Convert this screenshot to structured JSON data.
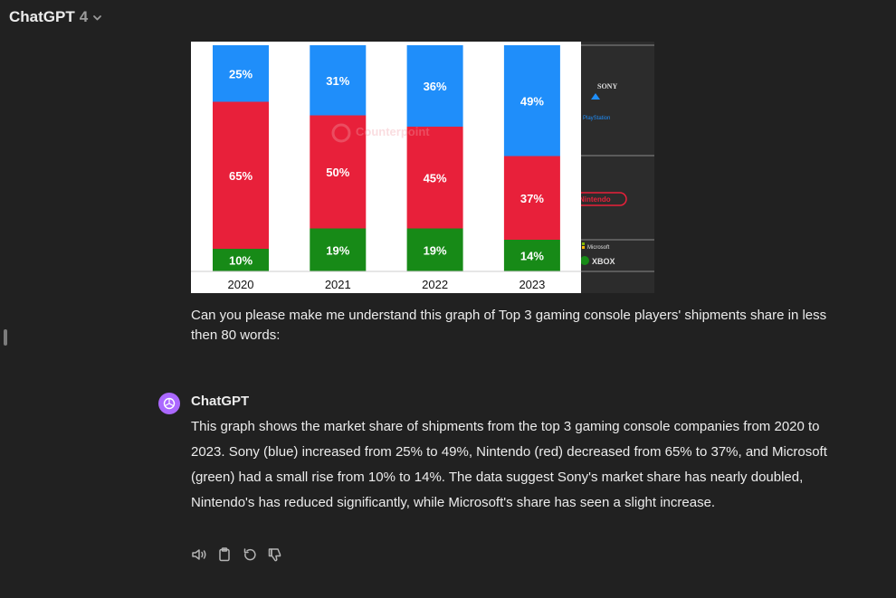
{
  "header": {
    "model_name": "ChatGPT",
    "model_version": "4"
  },
  "icons": {
    "chevron": "chevron-down-icon",
    "avatar": "openai-logo-icon",
    "read_aloud": "speaker-icon",
    "copy": "clipboard-icon",
    "regenerate": "refresh-icon",
    "dislike": "thumbs-down-icon"
  },
  "colors": {
    "sony": "#1f8efa",
    "nintendo": "#e8203a",
    "microsoft": "#178a17",
    "avatar": "#ab68ff"
  },
  "chart_data": {
    "type": "bar",
    "stacked": true,
    "categories": [
      "2020",
      "2021",
      "2022",
      "2023"
    ],
    "series": [
      {
        "name": "Microsoft",
        "values": [
          10,
          19,
          19,
          14
        ]
      },
      {
        "name": "Nintendo",
        "values": [
          65,
          50,
          45,
          37
        ]
      },
      {
        "name": "Sony",
        "values": [
          25,
          31,
          36,
          49
        ]
      }
    ],
    "ylim": [
      0,
      100
    ],
    "data_label_suffix": "%",
    "watermark": "Counterpoint",
    "logo_labels": {
      "sony": "SONY",
      "playstation": "PlayStation",
      "nintendo": "Nintendo",
      "microsoft": "Microsoft",
      "xbox": "XBOX"
    }
  },
  "user_message": "Can you please make me understand this graph of Top 3 gaming console players' shipments share in less then 80 words:",
  "assistant": {
    "name": "ChatGPT",
    "message": "This graph shows the market share of shipments from the top 3 gaming console companies from 2020 to 2023. Sony (blue) increased from 25% to 49%, Nintendo (red) decreased from 65% to 37%, and Microsoft (green) had a small rise from 10% to 14%. The data suggest Sony's market share has nearly doubled, Nintendo's has reduced significantly, while Microsoft's share has seen a slight increase."
  }
}
